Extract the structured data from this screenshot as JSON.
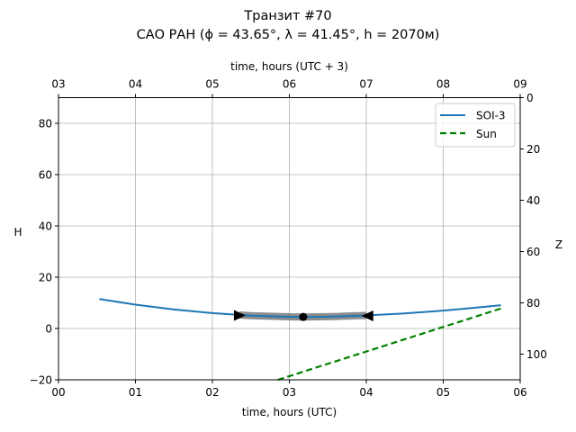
{
  "chart_data": {
    "type": "line",
    "title_line1": "Транзит #70",
    "title_line2": "САО РАН (ϕ = 43.65°, λ = 41.45°, h = 2070м)",
    "xlabel": "time, hours (UTC)",
    "xlabel_top": "time, hours (UTC + 3)",
    "ylabel": "H",
    "ylabel_right": "Z",
    "xlim": [
      0,
      6
    ],
    "ylim": [
      -20,
      90
    ],
    "ylim_right": [
      110,
      0
    ],
    "x_ticks": [
      0,
      1,
      2,
      3,
      4,
      5,
      6
    ],
    "x_tick_labels": [
      "00",
      "01",
      "02",
      "03",
      "04",
      "05",
      "06"
    ],
    "x_top_tick_labels": [
      "03",
      "04",
      "05",
      "06",
      "07",
      "08",
      "09"
    ],
    "y_ticks": [
      -20,
      0,
      20,
      40,
      60,
      80
    ],
    "y_tick_labels": [
      "−20",
      "0",
      "20",
      "40",
      "60",
      "80"
    ],
    "y_right_ticks": [
      0,
      20,
      40,
      60,
      80,
      100
    ],
    "y_right_tick_labels": [
      "0",
      "20",
      "40",
      "60",
      "80",
      "100"
    ],
    "grid": true,
    "legend_position": "top-right",
    "series": [
      {
        "name": "SOI-3",
        "color": "#1f77b4",
        "style": "solid",
        "x": [
          0.53,
          1.0,
          1.5,
          2.0,
          2.5,
          3.0,
          3.15,
          3.5,
          4.0,
          4.5,
          5.0,
          5.5,
          5.75
        ],
        "y": [
          11.5,
          9.3,
          7.4,
          6.0,
          5.0,
          4.55,
          4.5,
          4.6,
          5.1,
          5.9,
          7.0,
          8.3,
          9.1
        ]
      },
      {
        "name": "Sun",
        "color": "#008000",
        "style": "dashed",
        "x": [
          2.85,
          5.75
        ],
        "y": [
          -20,
          7.8
        ]
      }
    ],
    "visible_segment": {
      "x_start": 2.35,
      "x_end": 4.02,
      "color": "#808080"
    },
    "markers": {
      "start": {
        "x": 2.35,
        "y": 5.1
      },
      "peak": {
        "x": 3.18,
        "y": 4.5
      },
      "end": {
        "x": 4.02,
        "y": 4.9
      }
    }
  }
}
